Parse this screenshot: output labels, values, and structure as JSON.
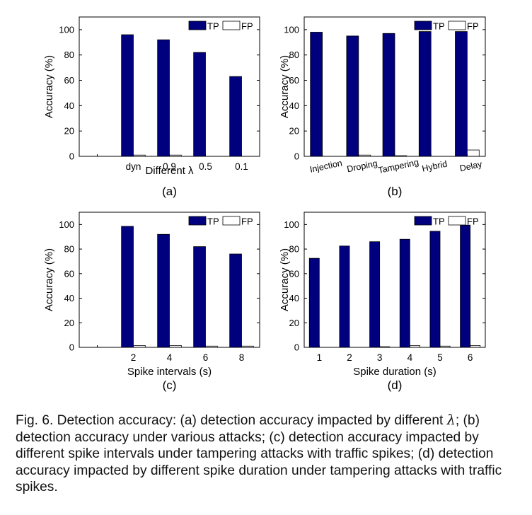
{
  "figure": {
    "caption_parts": [
      "Fig. 6. Detection accuracy: (a) detection accuracy impacted by different ",
      "λ",
      "; (b) detection accuracy under various attacks; (c) detection accuracy impacted by different spike intervals under tampering attacks with traffic spikes; (d) detection accuracy impacted by different spike duration under tampering attacks with traffic spikes."
    ]
  },
  "colors": {
    "tp": "#00007f",
    "fp": "#ffffff",
    "axis": "#000000"
  },
  "chart_data": [
    {
      "type": "bar",
      "panel_label": "(a)",
      "title": "",
      "xlabel": "Different λ",
      "ylabel": "Accuracy (%)",
      "ylim": [
        0,
        110
      ],
      "yticks": [
        0,
        20,
        40,
        60,
        80,
        100
      ],
      "categories": [
        "",
        "dyn",
        "0.9",
        "0.5",
        "0.1"
      ],
      "series": [
        {
          "name": "TP",
          "values": [
            null,
            96,
            92,
            82,
            63
          ]
        },
        {
          "name": "FP",
          "values": [
            null,
            1,
            1,
            0,
            0
          ]
        }
      ],
      "legend": "top-right",
      "rotated_ticks": false
    },
    {
      "type": "bar",
      "panel_label": "(b)",
      "title": "",
      "xlabel": "",
      "ylabel": "Accuracy (%)",
      "ylim": [
        0,
        110
      ],
      "yticks": [
        0,
        20,
        40,
        60,
        80,
        100
      ],
      "categories": [
        "Injection",
        "Droping",
        "Tampering",
        "Hybrid",
        "Delay"
      ],
      "series": [
        {
          "name": "TP",
          "values": [
            98,
            95,
            97,
            98.5,
            98.5
          ]
        },
        {
          "name": "FP",
          "values": [
            0,
            1,
            0.5,
            0,
            5
          ]
        }
      ],
      "legend": "top-right",
      "rotated_ticks": true
    },
    {
      "type": "bar",
      "panel_label": "(c)",
      "title": "",
      "xlabel": "Spike intervals (s)",
      "ylabel": "Accuracy (%)",
      "ylim": [
        0,
        110
      ],
      "yticks": [
        0,
        20,
        40,
        60,
        80,
        100
      ],
      "categories": [
        "",
        "2",
        "4",
        "6",
        "8"
      ],
      "series": [
        {
          "name": "TP",
          "values": [
            null,
            98.5,
            92,
            82,
            76
          ]
        },
        {
          "name": "FP",
          "values": [
            null,
            1.5,
            1.5,
            1,
            1
          ]
        }
      ],
      "legend": "top-right",
      "rotated_ticks": false
    },
    {
      "type": "bar",
      "panel_label": "(d)",
      "title": "",
      "xlabel": "Spike duration (s)",
      "ylabel": "Accuracy (%)",
      "ylim": [
        0,
        110
      ],
      "yticks": [
        0,
        20,
        40,
        60,
        80,
        100
      ],
      "categories": [
        "1",
        "2",
        "3",
        "4",
        "5",
        "6"
      ],
      "series": [
        {
          "name": "TP",
          "values": [
            72.5,
            82.5,
            86,
            88,
            94.5,
            99.5
          ]
        },
        {
          "name": "FP",
          "values": [
            0,
            0,
            0.5,
            1.5,
            1,
            1.5
          ]
        }
      ],
      "legend": "top-right",
      "rotated_ticks": false
    }
  ]
}
